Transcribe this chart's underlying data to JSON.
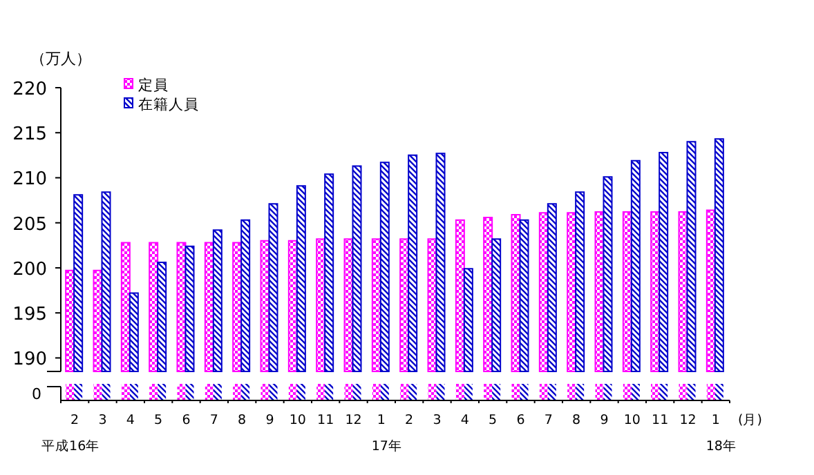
{
  "chart_data": {
    "type": "bar",
    "ylabel": "（万人）",
    "xlabel": "(月)",
    "categories": [
      "2\n平成16年",
      "3",
      "4",
      "5",
      "6",
      "7",
      "8",
      "9",
      "10",
      "11",
      "12",
      "1\n17年",
      "2",
      "3",
      "4",
      "5",
      "6",
      "7",
      "8",
      "9",
      "10",
      "11",
      "12",
      "1\n18年"
    ],
    "series": [
      {
        "name": "定員",
        "color": "#ff00ff",
        "values": [
          199.7,
          199.7,
          202.8,
          202.8,
          202.8,
          202.8,
          202.8,
          203.0,
          203.0,
          203.2,
          203.2,
          203.2,
          203.2,
          203.2,
          205.3,
          205.6,
          205.9,
          206.1,
          206.1,
          206.2,
          206.2,
          206.2,
          206.2,
          206.4
        ]
      },
      {
        "name": "在籍人員",
        "color": "#0000cc",
        "values": [
          208.1,
          208.4,
          197.2,
          200.6,
          202.4,
          204.2,
          205.3,
          207.1,
          209.1,
          210.4,
          211.3,
          211.7,
          212.5,
          212.7,
          199.9,
          203.2,
          205.3,
          207.1,
          208.4,
          210.1,
          211.9,
          212.8,
          214.0,
          214.3
        ]
      }
    ],
    "ylim": [
      188.5,
      220
    ],
    "yticks": [
      190,
      195,
      200,
      205,
      210,
      215,
      220
    ],
    "annotations": [
      "0"
    ],
    "grid": false,
    "legend": "top left"
  }
}
